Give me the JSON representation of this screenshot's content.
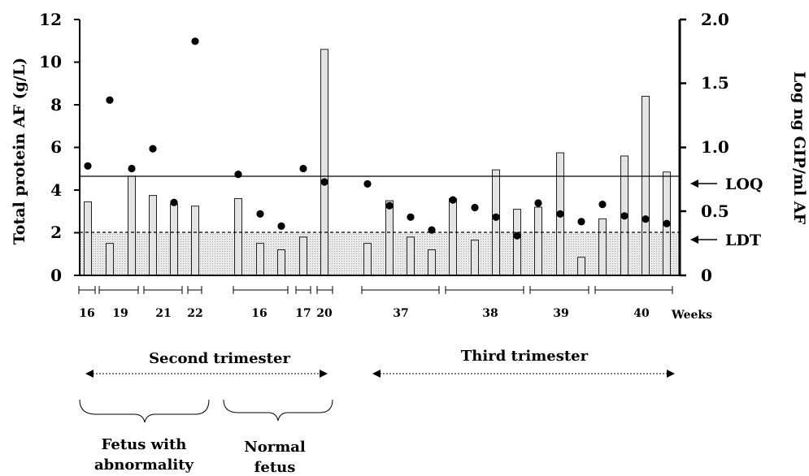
{
  "chart_data": {
    "type": "bar",
    "y_left": {
      "label": "Total protein AF (g/L)",
      "ticks": [
        "0",
        "2",
        "4",
        "6",
        "8",
        "10",
        "12"
      ],
      "ylim": [
        0,
        12
      ]
    },
    "y_right": {
      "label": "Log ng GIP/ml AF",
      "ticks": [
        "0",
        "0.5",
        "1.0",
        "1.5",
        "2.0"
      ],
      "ylim": [
        0,
        2.0
      ]
    },
    "bars": [
      3.45,
      1.5,
      4.65,
      3.75,
      3.35,
      3.25,
      3.6,
      1.5,
      1.2,
      1.8,
      10.6,
      1.5,
      3.5,
      1.8,
      1.2,
      3.6,
      1.65,
      4.95,
      3.1,
      3.2,
      5.75,
      0.85,
      2.65,
      5.6,
      8.4,
      4.85
    ],
    "dots": [
      {
        "x": 108,
        "y": 0.855
      },
      {
        "x": 135,
        "y": 1.37
      },
      {
        "x": 162,
        "y": 0.835
      },
      {
        "x": 188,
        "y": 0.99
      },
      {
        "x": 214,
        "y": 0.57
      },
      {
        "x": 240,
        "y": 1.83
      },
      {
        "x": 293,
        "y": 0.79
      },
      {
        "x": 320,
        "y": 0.48
      },
      {
        "x": 346,
        "y": 0.385
      },
      {
        "x": 373,
        "y": 0.835
      },
      {
        "x": 399,
        "y": 0.73
      },
      {
        "x": 452,
        "y": 0.715
      },
      {
        "x": 479,
        "y": 0.545
      },
      {
        "x": 505,
        "y": 0.455
      },
      {
        "x": 531,
        "y": 0.355
      },
      {
        "x": 557,
        "y": 0.59
      },
      {
        "x": 584,
        "y": 0.53
      },
      {
        "x": 610,
        "y": 0.455
      },
      {
        "x": 636,
        "y": 0.31
      },
      {
        "x": 662,
        "y": 0.565
      },
      {
        "x": 689,
        "y": 0.48
      },
      {
        "x": 715,
        "y": 0.42
      },
      {
        "x": 741,
        "y": 0.555
      },
      {
        "x": 768,
        "y": 0.465
      },
      {
        "x": 794,
        "y": 0.44
      },
      {
        "x": 820,
        "y": 0.405
      }
    ],
    "loq_value": 4.55,
    "ldt_value": 1.95,
    "week_groups": [
      "16",
      "19",
      "21",
      "22",
      "16",
      "17",
      "20",
      "37",
      "38",
      "39",
      "40"
    ],
    "weeks_label": "Weeks"
  },
  "reference_lines": {
    "loq_label": "LOQ",
    "ldt_label": "LDT"
  },
  "trimesters": {
    "second": "Second trimester",
    "third": "Third trimester"
  },
  "groups": {
    "abnormal_line1": "Fetus with",
    "abnormal_line2": "abnormality",
    "normal_line1": "Normal",
    "normal_line2": "fetus"
  }
}
